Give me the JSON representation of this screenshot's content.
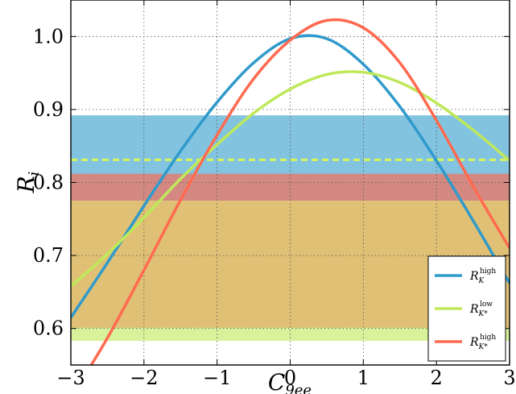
{
  "chart_data": {
    "type": "line",
    "xlabel": {
      "main": "C",
      "sub": "9ee"
    },
    "ylabel": {
      "main": "R",
      "sub": "i"
    },
    "xlim": [
      -3,
      3
    ],
    "ylim": [
      0.55,
      1.05
    ],
    "xticks": [
      -3,
      -2,
      -1,
      0,
      1,
      2,
      3
    ],
    "xtick_labels": [
      "−3",
      "−2",
      "−1",
      "0",
      "1",
      "2",
      "3"
    ],
    "yticks": [
      0.6,
      0.7,
      0.8,
      0.9,
      1.0
    ],
    "ytick_labels": [
      "0.6",
      "0.7",
      "0.8",
      "0.9",
      "1.0"
    ],
    "grid": true,
    "legend_position": "bottom-right",
    "bands": [
      {
        "name": "R_K^high band",
        "y": [
          0.775,
          0.892
        ],
        "color": "#3fa3cf",
        "opacity": 0.65
      },
      {
        "name": "R_K*^high band",
        "y": [
          0.775,
          0.812
        ],
        "color": "#ff6a50",
        "opacity": 0.65
      },
      {
        "name": "R_K*^low band",
        "y": [
          0.583,
          0.775
        ],
        "color": "#c9ed7a",
        "opacity": 0.75
      },
      {
        "name": "lower overlap",
        "y": [
          0.601,
          0.775
        ],
        "color": "#e0c074",
        "opacity": 1.0
      }
    ],
    "reference_line": {
      "y": 0.831,
      "color": "#d6f55a",
      "style": "dashed"
    },
    "series": [
      {
        "name": {
          "main": "R",
          "sub": "K",
          "sup": "high"
        },
        "color": "#2f9acb",
        "x": [
          -3.0,
          -2.5,
          -2.0,
          -1.5,
          -1.0,
          -0.5,
          0.0,
          0.5,
          1.0,
          1.5,
          2.0,
          2.5,
          3.0
        ],
        "y": [
          0.615,
          0.69,
          0.768,
          0.843,
          0.91,
          0.964,
          0.997,
          0.997,
          0.962,
          0.904,
          0.83,
          0.748,
          0.662
        ]
      },
      {
        "name": {
          "main": "R",
          "sub": "K*",
          "sup": "low"
        },
        "color": "#bfe85a",
        "x": [
          -3.0,
          -2.5,
          -2.0,
          -1.5,
          -1.0,
          -0.5,
          0.0,
          0.5,
          1.0,
          1.5,
          2.0,
          2.5,
          3.0
        ],
        "y": [
          0.658,
          0.702,
          0.752,
          0.805,
          0.852,
          0.895,
          0.928,
          0.948,
          0.951,
          0.937,
          0.909,
          0.872,
          0.83
        ]
      },
      {
        "name": {
          "main": "R",
          "sub": "K*",
          "sup": "high"
        },
        "color": "#ff6a50",
        "x": [
          -3.0,
          -2.5,
          -2.0,
          -1.5,
          -1.0,
          -0.5,
          0.0,
          0.5,
          1.0,
          1.5,
          2.0,
          2.5,
          3.0
        ],
        "y": [
          0.505,
          0.587,
          0.68,
          0.776,
          0.865,
          0.942,
          0.995,
          1.022,
          1.012,
          0.964,
          0.885,
          0.795,
          0.71
        ]
      }
    ]
  }
}
